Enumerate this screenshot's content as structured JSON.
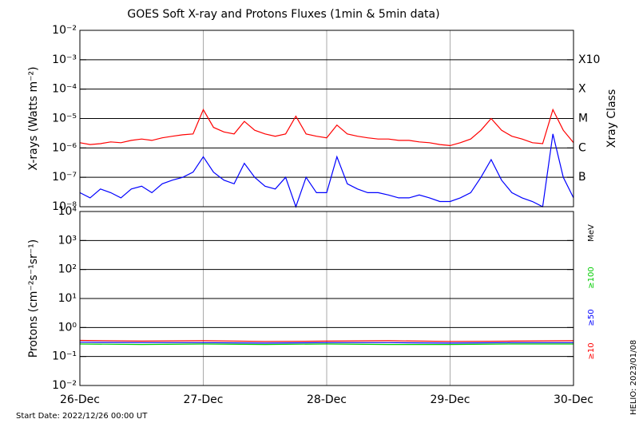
{
  "chart_data": [
    {
      "type": "line",
      "title": "GOES Soft X-ray and Protons Fluxes   (1min & 5min data)",
      "y_label": "X-rays (Watts m⁻²)",
      "y2_label": "Xray Class",
      "log_y": true,
      "grid": true,
      "xlim": [
        0,
        4
      ],
      "ylim": [
        1e-08,
        0.01
      ],
      "yticks": [
        {
          "value": 1e-08,
          "label": "10⁻⁸"
        },
        {
          "value": 1e-07,
          "label": "10⁻⁷"
        },
        {
          "value": 1e-06,
          "label": "10⁻⁶"
        },
        {
          "value": 1e-05,
          "label": "10⁻⁵"
        },
        {
          "value": 0.0001,
          "label": "10⁻⁴"
        },
        {
          "value": 0.001,
          "label": "10⁻³"
        },
        {
          "value": 0.01,
          "label": "10⁻²"
        }
      ],
      "y2ticks": [
        {
          "value": 1e-07,
          "label": "B"
        },
        {
          "value": 1e-06,
          "label": "C"
        },
        {
          "value": 1e-05,
          "label": "M"
        },
        {
          "value": 0.0001,
          "label": "X"
        },
        {
          "value": 0.001,
          "label": "X10"
        }
      ],
      "x": [
        0,
        0.083,
        0.167,
        0.25,
        0.333,
        0.417,
        0.5,
        0.583,
        0.667,
        0.75,
        0.833,
        0.917,
        1,
        1.083,
        1.167,
        1.25,
        1.333,
        1.417,
        1.5,
        1.583,
        1.667,
        1.75,
        1.833,
        1.917,
        2,
        2.083,
        2.167,
        2.25,
        2.333,
        2.417,
        2.5,
        2.583,
        2.667,
        2.75,
        2.833,
        2.917,
        3,
        3.083,
        3.167,
        3.25,
        3.333,
        3.417,
        3.5,
        3.583,
        3.667,
        3.75,
        3.833,
        3.917,
        4
      ],
      "series": [
        {
          "color": "#ff0000",
          "values": [
            1.5e-06,
            1.3e-06,
            1.4e-06,
            1.6e-06,
            1.5e-06,
            1.8e-06,
            2e-06,
            1.8e-06,
            2.2e-06,
            2.5e-06,
            2.8e-06,
            3e-06,
            2e-05,
            5e-06,
            3.5e-06,
            3e-06,
            8e-06,
            4e-06,
            3e-06,
            2.5e-06,
            3e-06,
            1.2e-05,
            3e-06,
            2.5e-06,
            2.2e-06,
            6e-06,
            3e-06,
            2.5e-06,
            2.2e-06,
            2e-06,
            2e-06,
            1.8e-06,
            1.8e-06,
            1.6e-06,
            1.5e-06,
            1.3e-06,
            1.2e-06,
            1.5e-06,
            2e-06,
            4e-06,
            1e-05,
            4e-06,
            2.5e-06,
            2e-06,
            1.5e-06,
            1.4e-06,
            2e-05,
            4e-06,
            1.5e-06
          ]
        },
        {
          "color": "#0000ff",
          "values": [
            3e-08,
            2e-08,
            4e-08,
            3e-08,
            2e-08,
            4e-08,
            5e-08,
            3e-08,
            6e-08,
            8e-08,
            1e-07,
            1.5e-07,
            5e-07,
            1.5e-07,
            8e-08,
            6e-08,
            3e-07,
            1e-07,
            5e-08,
            4e-08,
            1e-07,
            1e-08,
            1e-07,
            3e-08,
            3e-08,
            5e-07,
            6e-08,
            4e-08,
            3e-08,
            3e-08,
            2.5e-08,
            2e-08,
            2e-08,
            2.5e-08,
            2e-08,
            1.5e-08,
            1.5e-08,
            2e-08,
            3e-08,
            1e-07,
            4e-07,
            8e-08,
            3e-08,
            2e-08,
            1.5e-08,
            1e-08,
            3e-06,
            1e-07,
            2e-08
          ]
        }
      ]
    },
    {
      "type": "line",
      "y_label": "Protons (cm⁻²s⁻¹sr⁻¹)",
      "log_y": true,
      "grid": true,
      "unit_label": "MeV",
      "threshold": 10,
      "xlim": [
        0,
        4
      ],
      "xticks": [
        {
          "value": 0,
          "label": "26-Dec"
        },
        {
          "value": 1,
          "label": "27-Dec"
        },
        {
          "value": 2,
          "label": "28-Dec"
        },
        {
          "value": 3,
          "label": "29-Dec"
        },
        {
          "value": 4,
          "label": "30-Dec"
        }
      ],
      "ylim": [
        0.01,
        10000.0
      ],
      "yticks": [
        {
          "value": 0.01,
          "label": "10⁻²"
        },
        {
          "value": 0.1,
          "label": "10⁻¹"
        },
        {
          "value": 1,
          "label": "10⁰"
        },
        {
          "value": 10,
          "label": "10¹"
        },
        {
          "value": 100,
          "label": "10²"
        },
        {
          "value": 1000,
          "label": "10³"
        },
        {
          "value": 10000,
          "label": "10⁴"
        }
      ],
      "x": [
        0,
        0.5,
        1,
        1.5,
        2,
        2.5,
        3,
        3.5,
        4
      ],
      "series": [
        {
          "name": "≥10",
          "color": "#ff0000",
          "values": [
            0.36,
            0.34,
            0.35,
            0.33,
            0.34,
            0.35,
            0.33,
            0.34,
            0.35
          ]
        },
        {
          "name": "≥50",
          "color": "#0000ff",
          "values": [
            0.31,
            0.3,
            0.3,
            0.29,
            0.3,
            0.3,
            0.29,
            0.3,
            0.3
          ]
        },
        {
          "name": "≥100",
          "color": "#00cc00",
          "values": [
            0.27,
            0.26,
            0.27,
            0.26,
            0.27,
            0.26,
            0.26,
            0.27,
            0.27
          ]
        }
      ]
    }
  ],
  "footer": {
    "start_date": "Start Date: 2022/12/26 00:00 UT",
    "stamp": "HELIO: 2023/01/08"
  }
}
